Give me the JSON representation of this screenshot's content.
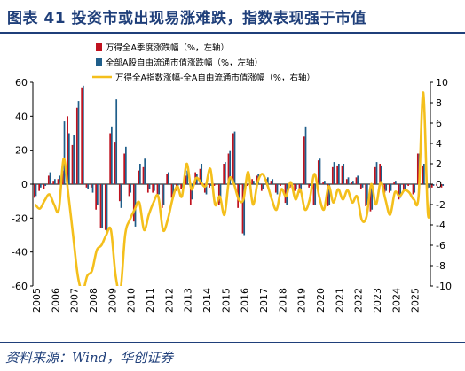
{
  "header": {
    "title": "图表 41   投资市或出现易涨难跌，指数表现强于市值"
  },
  "source": "资料来源：Wind，华创证券",
  "colors": {
    "stock_bar": "#c0121f",
    "cap_bar": "#1f5e8a",
    "excess_line": "#f4bf1c",
    "axis": "#000000",
    "brand": "#1f3f7a"
  },
  "chart_data": {
    "type": "bar",
    "title": "",
    "xlabel": "",
    "ylabel": "",
    "ylim_left": [
      -60,
      60
    ],
    "ylim_right": [
      -10,
      10
    ],
    "left_ticks": [
      "60",
      "40",
      "20",
      "0",
      "-20",
      "-40",
      "-60"
    ],
    "right_ticks": [
      "10",
      "8",
      "6",
      "4",
      "2",
      "0",
      "-2",
      "-4",
      "-6",
      "-8",
      "-10"
    ],
    "x_ticks": [
      "2005",
      "2006",
      "2007",
      "2008",
      "2009",
      "2010",
      "2011",
      "2012",
      "2013",
      "2014",
      "2015",
      "2016",
      "2017",
      "2018",
      "2019",
      "2020",
      "2021",
      "2022",
      "2023",
      "2024",
      "2025"
    ],
    "legend": [
      "万得全A季度涨跌幅（%，左轴）",
      "全部A股自由流通市值涨跌幅（%，左轴）",
      "万得全A指数涨幅-全A自由流通市值涨幅（%，右轴）"
    ],
    "legend_position": "top",
    "quarters_start": "2005Q1",
    "series": [
      {
        "name": "万得全A季度涨跌幅（%，左轴）",
        "axis": "left",
        "values": [
          -8,
          -4,
          -3,
          5,
          2,
          3,
          8,
          40,
          23,
          45,
          57,
          -2,
          -2,
          -15,
          -26,
          -27,
          30,
          25,
          -10,
          18,
          -7,
          -22,
          8,
          10,
          -5,
          -5,
          -7,
          -14,
          6,
          -8,
          -4,
          -3,
          5,
          -12,
          7,
          9,
          -5,
          -2,
          -1,
          -12,
          12,
          18,
          30,
          -14,
          -29,
          -1,
          3,
          5,
          -4,
          3,
          2,
          -5,
          -1,
          -11,
          -2,
          -4,
          -5,
          28,
          -2,
          -12,
          14,
          1,
          -13,
          10,
          11,
          11,
          3,
          1,
          4,
          -3,
          -13,
          -16,
          10,
          12,
          -5,
          -5,
          1,
          -9,
          -4,
          -1,
          -6,
          18,
          11,
          -3,
          -2,
          -1,
          -2
        ]
      },
      {
        "name": "全部A股自由流通市值涨跌幅（%，左轴）",
        "axis": "left",
        "values": [
          -7,
          -2,
          -1,
          7,
          3,
          5,
          37,
          30,
          29,
          49,
          58,
          -3,
          -5,
          -12,
          -26,
          -28,
          34,
          50,
          -14,
          22,
          -5,
          -25,
          12,
          15,
          -3,
          -4,
          -6,
          -12,
          7,
          -6,
          -3,
          -2,
          8,
          -9,
          6,
          12,
          -6,
          -1,
          0,
          -11,
          13,
          20,
          31,
          -10,
          -30,
          0,
          2,
          6,
          -3,
          4,
          3,
          -6,
          0,
          -12,
          -1,
          -3,
          -4,
          34,
          -1,
          -12,
          15,
          2,
          -12,
          13,
          12,
          12,
          4,
          2,
          5,
          -2,
          -12,
          -15,
          13,
          11,
          -4,
          -4,
          2,
          -8,
          -3,
          0,
          -5,
          18,
          12,
          -2,
          -1,
          0,
          -1
        ]
      },
      {
        "name": "万得全A指数涨幅-全A自由流通市值涨幅（%，右轴）",
        "axis": "right",
        "values": [
          -2,
          -2.4,
          -1.6,
          -1,
          -2,
          -2.5,
          2.5,
          -1,
          -5,
          -9,
          -10.5,
          -9,
          -8.5,
          -6.5,
          -6,
          -5,
          -4.5,
          -9,
          -10.5,
          -5,
          -3.5,
          -2.5,
          -1.8,
          -4.5,
          -3,
          -1.8,
          -1.2,
          -4.5,
          -3.5,
          -1.5,
          -0.2,
          -1.2,
          2,
          -0.5,
          0.6,
          0.2,
          -0.2,
          1.5,
          -2,
          -1.2,
          -3,
          0.5,
          0,
          -1.5,
          -1.5,
          1.2,
          -2,
          0.2,
          1,
          0,
          -1.5,
          -2.5,
          -0.5,
          -1.2,
          0.2,
          -1.5,
          -0.5,
          -2.5,
          -1.5,
          1,
          -1.2,
          -2.5,
          -0.2,
          -1.8,
          -0.5,
          -1.5,
          -0.6,
          -1.8,
          -1.2,
          -3.5,
          -3.2,
          0,
          -2,
          0.2,
          -1.5,
          -3,
          -0.8,
          -1.2,
          -0.6,
          -0.8,
          -1.5,
          -1.2,
          9,
          -3,
          0.5,
          -0.8,
          0.6
        ]
      }
    ]
  }
}
